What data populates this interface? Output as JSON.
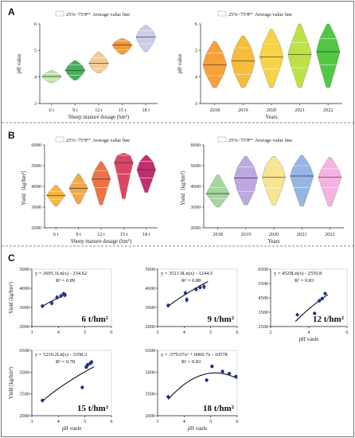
{
  "panels": {
    "a": "A",
    "b": "B",
    "c": "C"
  },
  "legend": {
    "iqr": "25%~75%",
    "mean": "Average value line"
  },
  "colors": {
    "a_left": [
      "#bde3a8",
      "#3cab50",
      "#f2c98f",
      "#f0922c",
      "#c9c9e8"
    ],
    "a_right": [
      "#f59b2d",
      "#f5b930",
      "#f6d23a",
      "#b9e03b",
      "#48c43a"
    ],
    "b_left": [
      "#f6b23a",
      "#f4a13a",
      "#ee6a3a",
      "#d83c5a",
      "#be2368"
    ],
    "b_right": [
      "#9ed39a",
      "#b9a3dd",
      "#f7e48a",
      "#8fb1e4",
      "#f5aede"
    ],
    "points": "#1f2d8a"
  },
  "chart_data": [
    {
      "id": "A-left",
      "type": "violin",
      "xlabel": "Sheep manure dosage (hm²)",
      "ylabel": "pH value",
      "ylim": [
        3,
        6
      ],
      "yticks": [
        3,
        4,
        5,
        6
      ],
      "categories": [
        "6 t",
        "9 t",
        "12 t",
        "15 t",
        "18 t"
      ],
      "series": [
        {
          "category": "6 t",
          "min": 3.78,
          "q1": 3.9,
          "mean": 4.02,
          "q3": 4.13,
          "max": 4.25
        },
        {
          "category": "9 t",
          "min": 3.88,
          "q1": 4.06,
          "mean": 4.25,
          "q3": 4.45,
          "max": 4.62
        },
        {
          "category": "12 t",
          "min": 4.15,
          "q1": 4.3,
          "mean": 4.52,
          "q3": 4.72,
          "max": 4.95
        },
        {
          "category": "15 t",
          "min": 4.85,
          "q1": 5.02,
          "mean": 5.2,
          "q3": 5.35,
          "max": 5.45
        },
        {
          "category": "18 t",
          "min": 4.95,
          "q1": 5.25,
          "mean": 5.5,
          "q3": 5.75,
          "max": 5.95
        }
      ]
    },
    {
      "id": "A-right",
      "type": "violin",
      "xlabel": "Years",
      "ylabel": "pH value",
      "ylim": [
        3,
        6
      ],
      "yticks": [
        3,
        4,
        5,
        6
      ],
      "categories": [
        "2018",
        "2019",
        "2020",
        "2021",
        "2022"
      ],
      "series": [
        {
          "category": "2018",
          "min": 3.6,
          "q1": 4.05,
          "mean": 4.45,
          "q3": 4.9,
          "max": 5.35
        },
        {
          "category": "2019",
          "min": 3.6,
          "q1": 4.1,
          "mean": 4.6,
          "q3": 5.1,
          "max": 5.55
        },
        {
          "category": "2020",
          "min": 3.6,
          "q1": 4.3,
          "mean": 4.75,
          "q3": 5.25,
          "max": 5.8
        },
        {
          "category": "2021",
          "min": 3.6,
          "q1": 4.35,
          "mean": 4.85,
          "q3": 5.3,
          "max": 6.0
        },
        {
          "category": "2022",
          "min": 3.6,
          "q1": 4.45,
          "mean": 4.95,
          "q3": 5.45,
          "max": 6.0
        }
      ]
    },
    {
      "id": "B-left",
      "type": "violin",
      "xlabel": "Sheep manure dosage (hm²)",
      "ylabel": "Yield（kg/hm²）",
      "ylim": [
        2000,
        6000
      ],
      "yticks": [
        2000,
        3000,
        4000,
        5000,
        6000
      ],
      "categories": [
        "6 t",
        "9 t",
        "12 t",
        "15 t",
        "18 t"
      ],
      "series": [
        {
          "category": "6 t",
          "min": 3050,
          "q1": 3380,
          "mean": 3560,
          "q3": 3750,
          "max": 4050
        },
        {
          "category": "9 t",
          "min": 3150,
          "q1": 3650,
          "mean": 3900,
          "q3": 4150,
          "max": 4600
        },
        {
          "category": "12 t",
          "min": 3100,
          "q1": 3950,
          "mean": 4350,
          "q3": 4750,
          "max": 5200
        },
        {
          "category": "15 t",
          "min": 3400,
          "q1": 4600,
          "mean": 5150,
          "q3": 5500,
          "max": 5600
        },
        {
          "category": "18 t",
          "min": 3700,
          "q1": 4400,
          "mean": 4800,
          "q3": 5200,
          "max": 5500
        }
      ]
    },
    {
      "id": "B-right",
      "type": "violin",
      "xlabel": "Years",
      "ylabel": "Yield（kg/hm²）",
      "ylim": [
        2000,
        6000
      ],
      "yticks": [
        2000,
        3000,
        4000,
        5000,
        6000
      ],
      "categories": [
        "2018",
        "2019",
        "2020",
        "2021",
        "2022"
      ],
      "series": [
        {
          "category": "2018",
          "min": 3000,
          "q1": 3400,
          "mean": 3650,
          "q3": 3950,
          "max": 4550
        },
        {
          "category": "2019",
          "min": 3100,
          "q1": 3750,
          "mean": 4400,
          "q3": 4950,
          "max": 5450
        },
        {
          "category": "2020",
          "min": 3100,
          "q1": 3900,
          "mean": 4450,
          "q3": 5000,
          "max": 5450
        },
        {
          "category": "2021",
          "min": 3050,
          "q1": 3950,
          "mean": 4500,
          "q3": 5000,
          "max": 5500
        },
        {
          "category": "2022",
          "min": 3050,
          "q1": 3950,
          "mean": 4450,
          "q3": 4850,
          "max": 5400
        }
      ]
    },
    {
      "id": "C-6t",
      "type": "scatter",
      "label": "6 t/hm²",
      "equation": "y = 2695.1Ln(x) - 234.62",
      "r2": "R² = 0.89",
      "xlim": [
        3,
        6
      ],
      "ylim": [
        2000,
        5000
      ],
      "xticks": [
        3,
        4,
        5,
        6
      ],
      "yticks": [
        2000,
        3000,
        4000,
        5000
      ],
      "ylabel": "Yield (kg/hm²)",
      "fit": {
        "kind": "log",
        "a": 2695.1,
        "b": -234.62,
        "x_range": [
          3.4,
          4.3
        ]
      },
      "points": [
        [
          3.4,
          3070
        ],
        [
          3.75,
          3230
        ],
        [
          3.95,
          3520
        ],
        [
          4.1,
          3600
        ],
        [
          4.2,
          3720
        ],
        [
          4.25,
          3650
        ]
      ],
      "errors": [
        60,
        90,
        80,
        70,
        60,
        80
      ]
    },
    {
      "id": "C-9t",
      "type": "scatter",
      "label": "9 t/hm²",
      "equation": "y = 3521.9Ln(x) - 1244.5",
      "r2": "R² = 0.88",
      "xlim": [
        3,
        6
      ],
      "ylim": [
        2000,
        5000
      ],
      "xticks": [
        3,
        4,
        5,
        6
      ],
      "yticks": [
        2000,
        3000,
        4000,
        5000
      ],
      "fit": {
        "kind": "log",
        "a": 3521.9,
        "b": -1244.5,
        "x_range": [
          3.4,
          4.9
        ]
      },
      "points": [
        [
          3.4,
          3100
        ],
        [
          4.05,
          3750
        ],
        [
          4.1,
          3400
        ],
        [
          4.45,
          3950
        ],
        [
          4.6,
          4050
        ],
        [
          4.75,
          4080
        ]
      ],
      "errors": [
        70,
        80,
        100,
        70,
        80,
        90
      ]
    },
    {
      "id": "C-12t",
      "type": "scatter",
      "label": "12 t/hm²",
      "equation": "y = 4529Ln(x) - 2559.8",
      "r2": "R² = 0.83",
      "xlim": [
        2,
        6
      ],
      "ylim": [
        2500,
        6500
      ],
      "xticks": [
        2,
        4,
        6
      ],
      "yticks": [
        2500,
        3500,
        4500,
        5500,
        6500
      ],
      "xlabel": "pH vaule",
      "fit": {
        "kind": "log",
        "a": 4529,
        "b": -2559.8,
        "x_range": [
          3.3,
          5.0
        ]
      },
      "points": [
        [
          3.4,
          3320
        ],
        [
          4.3,
          3420
        ],
        [
          4.55,
          4300
        ],
        [
          4.7,
          4450
        ],
        [
          4.85,
          4800
        ]
      ],
      "errors": [
        60,
        60,
        80,
        90,
        70
      ]
    },
    {
      "id": "C-15t",
      "type": "scatter",
      "label": "15 t/hm²",
      "equation": "y = 5210.2Ln(x) - 3358.3",
      "r2": "R² = 0.78",
      "xlim": [
        3,
        6
      ],
      "ylim": [
        2000,
        6500
      ],
      "xticks": [
        3,
        4,
        5,
        6
      ],
      "yticks": [
        2000,
        3500,
        5000,
        6500
      ],
      "ylabel": "Yield (kg/hm²)",
      "xlabel": "pH vaule",
      "fit": {
        "kind": "log",
        "a": 5210.2,
        "b": -3358.3,
        "x_range": [
          3.4,
          5.35
        ]
      },
      "points": [
        [
          3.4,
          3050
        ],
        [
          4.9,
          3950
        ],
        [
          5.05,
          5350
        ],
        [
          5.1,
          5500
        ],
        [
          5.2,
          5600
        ],
        [
          5.25,
          5700
        ]
      ],
      "errors": [
        80,
        80,
        90,
        100,
        80,
        90
      ]
    },
    {
      "id": "C-18t",
      "type": "scatter",
      "label": "18 t/hm²",
      "equation": "y = -579.67x² + 6000.7x - 10578",
      "r2": "R² = 0.83",
      "xlim": [
        3,
        6
      ],
      "ylim": [
        2000,
        6500
      ],
      "xticks": [
        3,
        4,
        5,
        6
      ],
      "yticks": [
        2000,
        3500,
        5000,
        6500
      ],
      "xlabel": "pH vaule",
      "fit": {
        "kind": "quad",
        "a": -579.67,
        "b": 6000.7,
        "c": -10578,
        "x_range": [
          3.4,
          6.0
        ]
      },
      "points": [
        [
          3.4,
          3300
        ],
        [
          4.85,
          4450
        ],
        [
          5.05,
          5400
        ],
        [
          5.45,
          5050
        ],
        [
          5.7,
          4900
        ],
        [
          5.95,
          4700
        ]
      ],
      "errors": [
        70,
        80,
        90,
        80,
        90,
        80
      ]
    }
  ]
}
